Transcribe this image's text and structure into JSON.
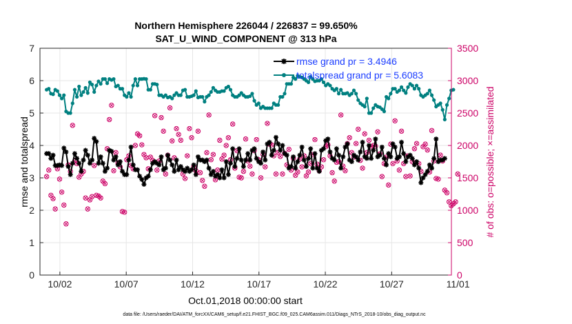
{
  "chart_data": {
    "type": "line",
    "title": "Northern Hemisphere 226044 / 226837 = 99.650%",
    "subtitle": "SAT_U_WIND_COMPONENT @ 313 hPa",
    "xlabel": "Oct.01,2018 00:00:00 start",
    "ylabel_left": "rmse and totalspread",
    "ylabel_right": "# of obs: o=possible; ×=assimilated",
    "footnote": "data file: /Users/raeder/DAI/ATM_forcXX/CAM6_setup/f.e21.FHIST_BGC.f09_025.CAM6assim.011/Diags_NTrS_2018-10/obs_diag_output.nc",
    "xlim": [
      0.5,
      31.5
    ],
    "ylim_left": [
      0,
      7
    ],
    "ylim_right": [
      0,
      3500
    ],
    "x_ticks": [
      {
        "value": 2,
        "label": "10/02"
      },
      {
        "value": 7,
        "label": "10/07"
      },
      {
        "value": 12,
        "label": "10/12"
      },
      {
        "value": 17,
        "label": "10/17"
      },
      {
        "value": 22,
        "label": "10/22"
      },
      {
        "value": 27,
        "label": "10/27"
      },
      {
        "value": 32,
        "label": "11/01"
      }
    ],
    "y_ticks_left": [
      "0",
      "1",
      "2",
      "3",
      "4",
      "5",
      "6",
      "7"
    ],
    "y_ticks_right": [
      "0",
      "500",
      "1000",
      "1500",
      "2000",
      "2500",
      "3000",
      "3500"
    ],
    "colors": {
      "rmse": "#000000",
      "spread": "#008080",
      "obs": "#cc0066",
      "right_axis": "#cc0066"
    },
    "series": [
      {
        "name": "rmse grand pr = 3.4946",
        "axis": "left",
        "values": [
          3.75,
          3.75,
          3.6,
          3.7,
          3.38,
          3.38,
          3.4,
          3.38,
          3.92,
          3.8,
          3.35,
          3.1,
          3.45,
          3.75,
          3.6,
          3.45,
          3.2,
          3.55,
          3.85,
          3.7,
          3.45,
          3.55,
          4.22,
          4.12,
          3.45,
          3.65,
          3.45,
          3.2,
          3.3,
          3.85,
          3.82,
          3.55,
          3.65,
          3.4,
          3.5,
          3.2,
          3.1,
          3.1,
          3.55,
          3.95,
          3.4,
          3.25,
          3.25,
          3.05,
          2.95,
          2.8,
          3.0,
          3.05,
          3.25,
          3.45,
          3.5,
          3.45,
          3.4,
          3.65,
          3.25,
          3.3,
          3.7,
          3.55,
          3.4,
          3.2,
          3.55,
          3.25,
          3.35,
          3.25,
          3.2,
          3.3,
          3.2,
          3.25,
          3.4,
          3.1,
          3.65,
          3.55,
          3.55,
          3.5,
          3.55,
          3.3,
          3.1,
          3.2,
          3.05,
          3.1,
          3.0,
          3.25,
          3.0,
          3.5,
          3.1,
          3.45,
          3.9,
          3.35,
          3.6,
          3.9,
          3.55,
          3.35,
          3.55,
          3.75,
          3.55,
          3.85,
          3.9,
          3.6,
          3.5,
          3.45,
          3.8,
          3.55,
          4.05,
          4.1,
          3.7,
          3.85,
          4.25,
          4.05,
          3.85,
          4.0,
          3.75,
          3.7,
          3.3,
          3.35,
          3.65,
          3.3,
          3.5,
          3.7,
          3.95,
          3.55,
          3.35,
          3.6,
          3.9,
          3.3,
          3.75,
          3.3,
          3.2,
          3.85,
          3.9,
          4.15,
          4.2,
          3.8,
          3.6,
          3.55,
          3.9,
          3.7,
          3.3,
          3.65,
          3.95,
          4.05,
          3.55,
          3.5,
          3.7,
          3.65,
          3.55,
          3.8,
          4.1,
          3.65,
          3.6,
          4.0,
          3.6,
          3.85,
          4.2,
          3.65,
          3.7,
          3.95,
          3.6,
          3.4,
          3.75,
          3.65,
          4.05,
          3.95,
          3.6,
          3.65,
          4.1,
          3.75,
          3.5,
          3.65,
          3.7,
          3.6,
          3.4,
          3.5,
          3.3,
          2.85,
          3.0,
          3.1,
          3.2,
          3.4,
          3.3,
          3.6,
          4.2,
          3.5,
          3.55,
          3.55,
          3.6
        ]
      },
      {
        "name": "totalspread grand pr = 5.6083",
        "axis": "left",
        "values": [
          5.72,
          5.75,
          5.6,
          5.58,
          5.72,
          5.68,
          5.55,
          5.45,
          5.55,
          5.05,
          5.0,
          5.0,
          5.3,
          5.72,
          5.5,
          5.82,
          5.55,
          5.65,
          5.78,
          5.62,
          5.95,
          5.88,
          5.65,
          5.85,
          5.98,
          5.9,
          6.05,
          6.05,
          5.92,
          6.05,
          6.02,
          6.05,
          5.82,
          5.85,
          5.75,
          5.75,
          5.55,
          5.5,
          5.62,
          5.5,
          5.85,
          6.05,
          5.85,
          6.05,
          6.05,
          6.06,
          6.05,
          5.72,
          5.72,
          5.9,
          5.9,
          5.88,
          5.55,
          5.55,
          5.5,
          5.55,
          5.48,
          5.5,
          5.45,
          5.55,
          5.62,
          5.55,
          5.55,
          5.7,
          5.72,
          5.5,
          5.5,
          5.52,
          5.55,
          5.68,
          5.48,
          5.5,
          5.5,
          5.35,
          5.5,
          5.55,
          5.65,
          5.78,
          5.7,
          5.65,
          5.65,
          5.68,
          5.68,
          5.78,
          5.82,
          5.72,
          5.55,
          5.5,
          5.5,
          5.55,
          5.62,
          5.55,
          5.5,
          5.5,
          5.52,
          5.6,
          5.38,
          5.25,
          5.3,
          5.15,
          5.2,
          5.15,
          5.15,
          5.15,
          5.15,
          5.3,
          5.25,
          5.25,
          5.5,
          5.5,
          5.6,
          5.9,
          5.9,
          5.9,
          6.1,
          6.05,
          6.15,
          6.12,
          6.1,
          6.05,
          6.0,
          5.95,
          6.12,
          6.05,
          5.98,
          6.0,
          6.0,
          6.05,
          5.95,
          5.85,
          5.9,
          5.85,
          5.75,
          5.7,
          5.75,
          5.6,
          5.72,
          5.6,
          5.6,
          5.62,
          5.55,
          5.6,
          5.7,
          5.6,
          5.4,
          5.3,
          5.25,
          5.2,
          5.45,
          5.0,
          5.0,
          5.15,
          5.25,
          5.2,
          5.18,
          5.12,
          5.05,
          5.5,
          5.45,
          5.6,
          5.75,
          5.75,
          5.65,
          5.7,
          5.8,
          5.7,
          5.62,
          5.8,
          5.9,
          5.85,
          5.75,
          5.85,
          5.75,
          5.55,
          5.5,
          5.55,
          5.6,
          5.7,
          5.55,
          5.4,
          5.2,
          5.25,
          5.3,
          5.1,
          4.8,
          5.25,
          5.45,
          5.7,
          5.72
        ]
      },
      {
        "name": "obs possible/assimilated",
        "axis": "right",
        "values": [
          1520,
          1620,
          1230,
          1180,
          1020,
          1640,
          1480,
          1280,
          1080,
          790,
          1700,
          1600,
          2310,
          1760,
          1720,
          1510,
          1560,
          1600,
          1190,
          1020,
          1160,
          1210,
          1690,
          1230,
          1220,
          1190,
          1450,
          1410,
          1950,
          2400,
          2620,
          1610,
          1890,
          1730,
          1670,
          980,
          970,
          1780,
          1840,
          1690,
          1640,
          2000,
          2180,
          2150,
          2010,
          1860,
          1810,
          1640,
          1820,
          1770,
          2460,
          1620,
          1760,
          2430,
          2220,
          1560,
          1850,
          2580,
          2070,
          1810,
          2260,
          2170,
          2080,
          1560,
          1490,
          1840,
          2260,
          2120,
          1670,
          1610,
          2220,
          1580,
          1460,
          1370,
          1890,
          2470,
          1780,
          1860,
          1470,
          1620,
          2080,
          1790,
          1850,
          2000,
          2120,
          1780,
          2330,
          1650,
          1920,
          1510,
          1500,
          1600,
          2100,
          1760,
          1680,
          1560,
          1920,
          2090,
          1780,
          1500,
          1860,
          1670,
          2340,
          2020,
          2010,
          1840,
          1560,
          1890,
          1830,
          1560,
          1880,
          1700,
          1940,
          1620,
          1800,
          1540,
          1590,
          1790,
          1670,
          1840,
          1530,
          1590,
          1720,
          1860,
          2090,
          1710,
          1610,
          1670,
          1780,
          1980,
          2010,
          1840,
          1580,
          1450,
          1740,
          1750,
          2470,
          1680,
          1610,
          2030,
          2120,
          1890,
          1820,
          2030,
          2250,
          1770,
          1650,
          2180,
          1890,
          2080,
          1980,
          2000,
          1990,
          2210,
          1870,
          1520,
          1720,
          1820,
          1390,
          2020,
          1720,
          2380,
          1760,
          1620,
          2220,
          1720,
          1520,
          1840,
          1530,
          1750,
          1950,
          2030,
          1720,
          1600,
          1980,
          2020,
          1930,
          1590,
          2230,
          1760,
          1490,
          1480,
          1850,
          1760,
          1310,
          1270,
          1130,
          1070,
          1100,
          1130,
          1560
        ]
      }
    ]
  }
}
